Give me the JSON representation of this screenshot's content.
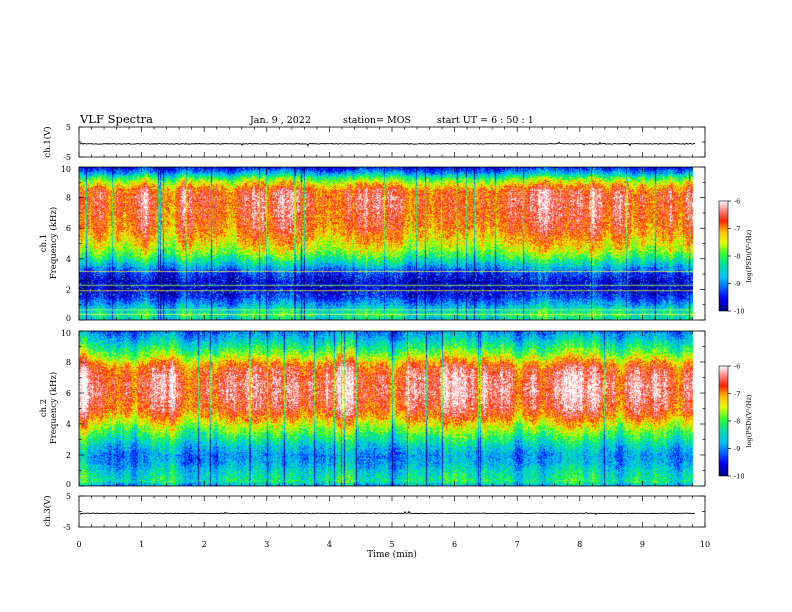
{
  "header": {
    "title": "VLF Spectra",
    "date": "Jan. 9 , 2022",
    "station": "station= MOS",
    "start": "start UT = 6 : 50 : 1"
  },
  "chart_data": [
    {
      "type": "line",
      "name": "ch1-waveform",
      "ylabel": "ch.1(V)",
      "ylim": [
        -5,
        5
      ],
      "yticks": [
        5,
        -5
      ],
      "xlim": [
        0,
        10
      ],
      "level": -0.6,
      "noise": 0.25
    },
    {
      "type": "heatmap",
      "name": "ch1-spectrogram",
      "ylabel_line1": "ch.1",
      "ylabel_line2": "Frequency (kHz)",
      "ylim": [
        0,
        10
      ],
      "yticks": [
        0,
        2,
        4,
        6,
        8,
        10
      ],
      "xlim": [
        0,
        10
      ],
      "data_end_min": 9.85,
      "colorbar": {
        "label": "log(PSD)(V²/Hz)",
        "range": [
          -10,
          -6
        ],
        "ticks": [
          -6,
          -7,
          -8,
          -9,
          -10
        ]
      },
      "profile_khz": [
        0,
        0.3,
        0.6,
        1.0,
        1.5,
        2.0,
        2.5,
        3.0,
        3.5,
        4.0,
        4.5,
        5.0,
        5.5,
        6.0,
        7.0,
        8.0,
        8.5,
        9.0,
        9.3,
        9.6,
        10.0
      ],
      "profile_level": [
        0.35,
        0.45,
        0.4,
        0.28,
        0.15,
        0.05,
        0.06,
        0.14,
        0.3,
        0.45,
        0.58,
        0.66,
        0.72,
        0.78,
        0.82,
        0.84,
        0.8,
        0.62,
        0.48,
        0.28,
        0.1
      ]
    },
    {
      "type": "heatmap",
      "name": "ch2-spectrogram",
      "ylabel_line1": "ch.2",
      "ylabel_line2": "Frequency (kHz)",
      "ylim": [
        0,
        10
      ],
      "yticks": [
        0,
        2,
        4,
        6,
        8,
        10
      ],
      "xlim": [
        0,
        10
      ],
      "data_end_min": 9.85,
      "colorbar": {
        "label": "log(PSD)(V²/Hz)",
        "range": [
          -10,
          -6
        ],
        "ticks": [
          -6,
          -7,
          -8,
          -9,
          -10
        ]
      },
      "profile_khz": [
        0,
        0.3,
        0.8,
        1.5,
        2.0,
        2.5,
        3.0,
        3.5,
        4.0,
        4.5,
        5.0,
        6.0,
        7.0,
        7.5,
        8.0,
        8.5,
        9.0,
        9.5,
        10.0
      ],
      "profile_level": [
        0.3,
        0.45,
        0.4,
        0.3,
        0.28,
        0.35,
        0.45,
        0.55,
        0.66,
        0.78,
        0.86,
        0.92,
        0.9,
        0.86,
        0.74,
        0.58,
        0.46,
        0.35,
        0.25
      ]
    },
    {
      "type": "line",
      "name": "ch3-waveform",
      "ylabel": "ch.3(V)",
      "ylim": [
        -5,
        5
      ],
      "yticks": [
        5,
        -5
      ],
      "xlim": [
        0,
        10
      ],
      "level": -0.6,
      "noise": 0.2
    }
  ],
  "xaxis": {
    "label": "Time (min)",
    "range": [
      0,
      10
    ],
    "ticks": [
      0,
      1,
      2,
      3,
      4,
      5,
      6,
      7,
      8,
      9,
      10
    ]
  }
}
